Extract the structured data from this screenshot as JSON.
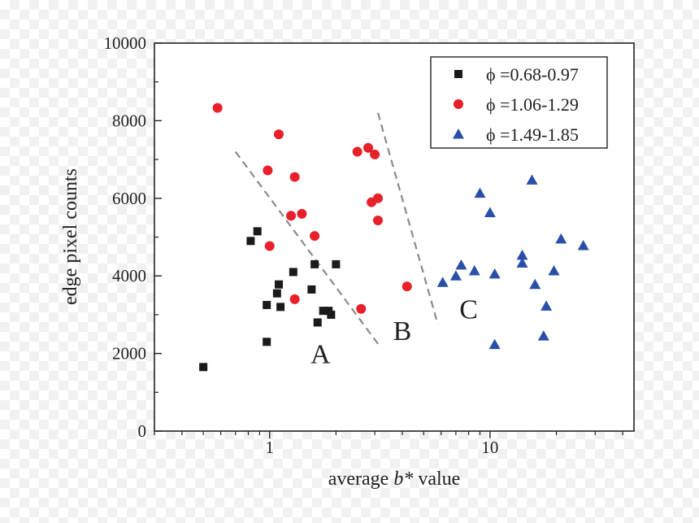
{
  "chart_data": {
    "type": "scatter",
    "xscale": "log",
    "xlim": [
      0.3,
      45
    ],
    "ylim": [
      0,
      10000
    ],
    "xlabel_prefix": "average ",
    "xlabel_var": "b*",
    "xlabel_suffix": " value",
    "ylabel": "edge pixel counts",
    "x_ticks": [
      1,
      10
    ],
    "x_tick_labels": [
      "1",
      "10"
    ],
    "y_ticks": [
      0,
      2000,
      4000,
      6000,
      8000,
      10000
    ],
    "y_tick_labels": [
      "0",
      "2000",
      "4000",
      "6000",
      "8000",
      "10000"
    ],
    "legend_position": "top-right",
    "series": [
      {
        "name": "ϕ =0.68-0.97",
        "marker": "square",
        "color": "#1a1a1a",
        "points": [
          [
            0.5,
            1650
          ],
          [
            0.82,
            4900
          ],
          [
            0.88,
            5150
          ],
          [
            0.97,
            2300
          ],
          [
            0.97,
            3250
          ],
          [
            1.08,
            3550
          ],
          [
            1.1,
            3780
          ],
          [
            1.12,
            3200
          ],
          [
            1.28,
            4100
          ],
          [
            1.55,
            3650
          ],
          [
            1.6,
            4300
          ],
          [
            1.65,
            2800
          ],
          [
            1.75,
            3100
          ],
          [
            1.85,
            3100
          ],
          [
            1.9,
            3000
          ],
          [
            2.0,
            4300
          ]
        ]
      },
      {
        "name": "ϕ =1.06-1.29",
        "marker": "circle",
        "color": "#e8202a",
        "points": [
          [
            0.58,
            8330
          ],
          [
            0.98,
            6720
          ],
          [
            1.1,
            7650
          ],
          [
            1.0,
            4770
          ],
          [
            1.25,
            5550
          ],
          [
            1.3,
            6550
          ],
          [
            1.4,
            5600
          ],
          [
            1.6,
            5030
          ],
          [
            1.3,
            3400
          ],
          [
            2.5,
            7200
          ],
          [
            2.8,
            7300
          ],
          [
            3.0,
            7130
          ],
          [
            2.9,
            5900
          ],
          [
            3.1,
            6000
          ],
          [
            3.1,
            5430
          ],
          [
            2.6,
            3150
          ],
          [
            4.2,
            3730
          ]
        ]
      },
      {
        "name": "ϕ =1.49-1.85",
        "marker": "triangle",
        "color": "#2a4fa8",
        "points": [
          [
            6.1,
            3830
          ],
          [
            7.0,
            4000
          ],
          [
            7.4,
            4280
          ],
          [
            8.5,
            4130
          ],
          [
            9.0,
            6130
          ],
          [
            10.0,
            5630
          ],
          [
            10.5,
            4050
          ],
          [
            10.5,
            2230
          ],
          [
            14.0,
            4530
          ],
          [
            14.0,
            4330
          ],
          [
            15.5,
            6470
          ],
          [
            16.0,
            3780
          ],
          [
            17.5,
            2450
          ],
          [
            18.0,
            3220
          ],
          [
            19.5,
            4130
          ],
          [
            21.0,
            4950
          ],
          [
            26.5,
            4780
          ]
        ]
      }
    ],
    "boundary_lines": [
      {
        "from": [
          0.7,
          7200
        ],
        "to": [
          3.1,
          2250
        ]
      },
      {
        "from": [
          3.1,
          8200
        ],
        "to": [
          5.8,
          2750
        ]
      }
    ],
    "annotations": [
      {
        "text": "A",
        "x": 1.7,
        "y": 1750
      },
      {
        "text": "B",
        "x": 4.0,
        "y": 2350
      },
      {
        "text": "C",
        "x": 8.0,
        "y": 2900
      }
    ]
  }
}
